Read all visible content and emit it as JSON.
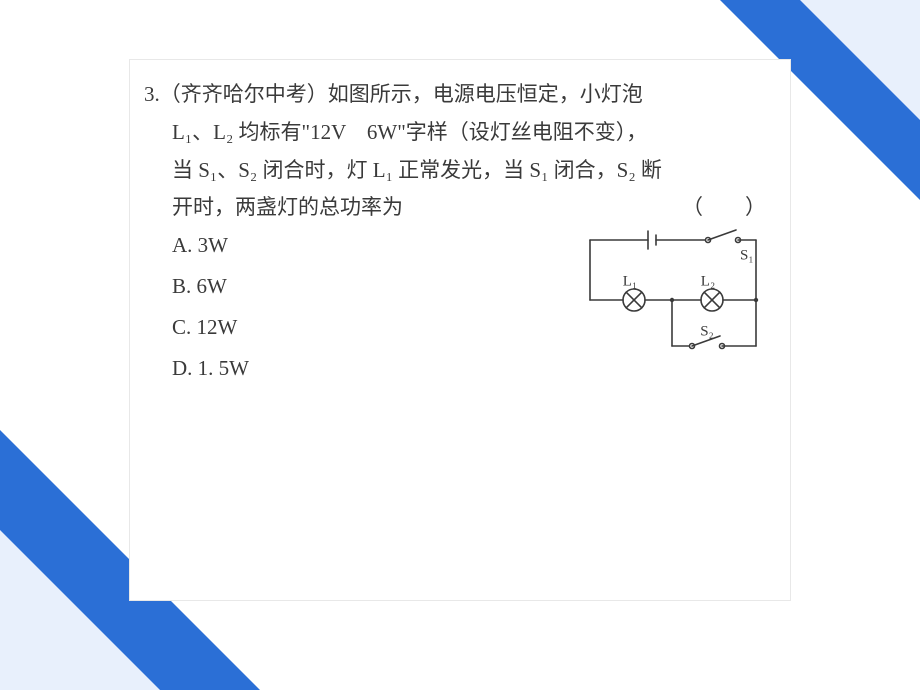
{
  "question": {
    "number": "3",
    "source": "（齐齐哈尔中考）",
    "line1_a": "如图所示，电源电压恒定，小灯泡",
    "line2": "L₁、L₂ 均标有\"12V　6W\"字样（设灯丝电阻不变），",
    "line3": "当 S₁、S₂ 闭合时，灯 L₁ 正常发光，当 S₁ 闭合，S₂ 断",
    "line4_a": "开时，两盏灯的总功率为",
    "paren": "（　　）"
  },
  "options": {
    "A": "A. 3W",
    "B": "B. 6W",
    "C": "C. 12W",
    "D": "D. 1. 5W"
  },
  "circuit": {
    "labels": {
      "S1": "S₁",
      "S2": "S₂",
      "L1": "L₁",
      "L2": "L₂"
    },
    "stroke": "#3a3a3a",
    "stroke_width": 1.6,
    "font_size": 15
  },
  "colors": {
    "accent_blue": "#2b6fd6",
    "accent_light": "#e8f0fc",
    "text": "#3a3a3a",
    "card_bg": "#ffffff"
  }
}
